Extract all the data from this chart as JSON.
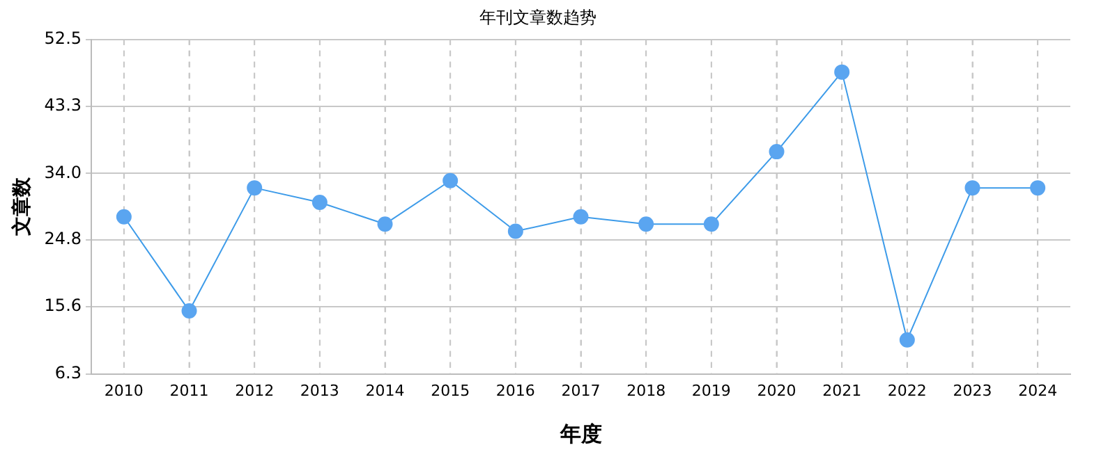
{
  "chart_data": {
    "type": "line",
    "title": "年刊文章数趋势",
    "xlabel": "年度",
    "ylabel": "文章数",
    "categories": [
      "2010",
      "2011",
      "2012",
      "2013",
      "2014",
      "2015",
      "2016",
      "2017",
      "2018",
      "2019",
      "2020",
      "2021",
      "2022",
      "2023",
      "2024"
    ],
    "series": [
      {
        "color": "#3d9be9",
        "values": [
          28,
          15,
          32,
          30,
          27,
          33,
          26,
          28,
          27,
          27,
          37,
          48,
          11,
          32,
          32
        ]
      }
    ],
    "ylim": [
      6.3,
      52.5
    ],
    "yticks": [
      6.3,
      15.6,
      24.8,
      {
        "value": 34,
        "label": "34.0"
      },
      43.3,
      52.5
    ],
    "grid": true,
    "legend": false,
    "marker": "circle",
    "line_style": "solid"
  }
}
